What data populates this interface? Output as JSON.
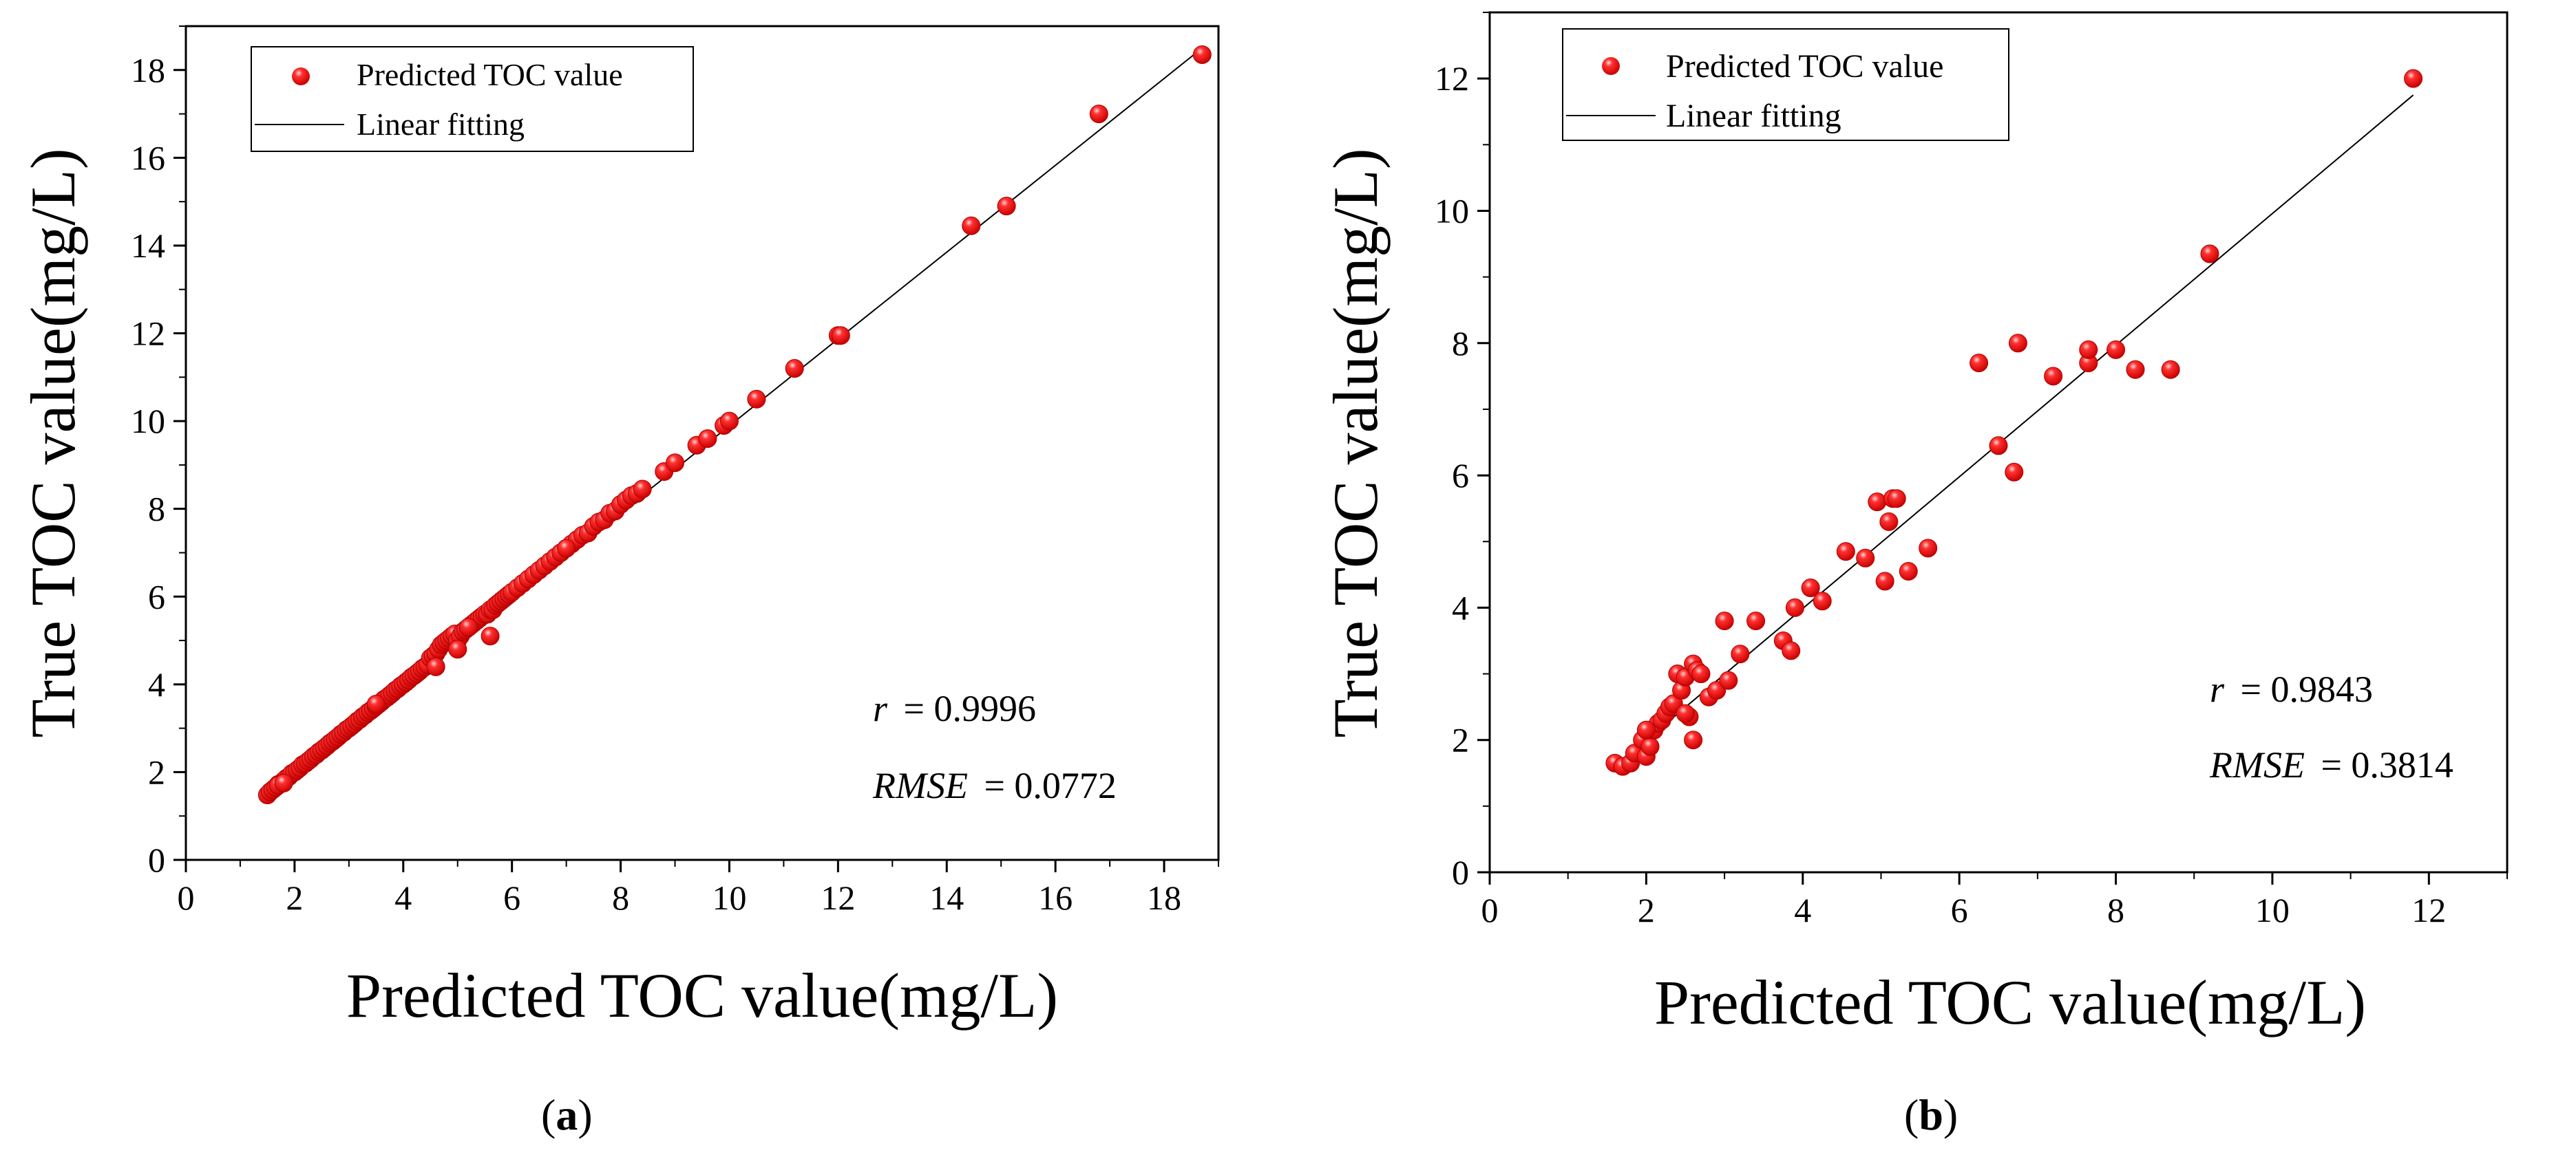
{
  "chart_data": [
    {
      "type": "scatter",
      "panel_label": "a",
      "xlabel": "Predicted TOC value(mg/L)",
      "ylabel": "True TOC value(mg/L)",
      "xlim": [
        0,
        19
      ],
      "ylim": [
        0,
        19
      ],
      "xticks": [
        0,
        2,
        4,
        6,
        8,
        10,
        12,
        14,
        16,
        18
      ],
      "yticks": [
        0,
        2,
        4,
        6,
        8,
        10,
        12,
        14,
        16,
        18
      ],
      "legend": {
        "placement": "top-left",
        "items": [
          "Predicted TOC value",
          "Linear fitting"
        ]
      },
      "stats": {
        "r_label": "r",
        "r_value": "= 0.9996",
        "rmse_label": "RMSE",
        "rmse_value": "= 0.0772"
      },
      "fit_line": {
        "x": [
          1.5,
          18.7
        ],
        "y": [
          1.48,
          18.5
        ]
      },
      "series": [
        {
          "name": "Predicted TOC value",
          "color": "#ff0000",
          "x": [
            1.5,
            1.55,
            1.6,
            1.65,
            1.7,
            1.75,
            1.8,
            1.85,
            1.9,
            1.95,
            2.0,
            2.05,
            2.1,
            2.15,
            2.2,
            2.25,
            2.3,
            2.35,
            2.4,
            2.45,
            2.5,
            2.55,
            2.6,
            2.65,
            2.7,
            2.75,
            2.8,
            2.85,
            2.9,
            2.95,
            3.0,
            3.05,
            3.1,
            3.15,
            3.2,
            3.25,
            3.3,
            3.35,
            3.4,
            3.45,
            3.5,
            3.55,
            3.6,
            3.65,
            3.7,
            3.75,
            3.8,
            3.85,
            3.9,
            3.95,
            4.0,
            4.05,
            4.1,
            4.15,
            4.2,
            4.25,
            4.3,
            4.35,
            4.4,
            4.45,
            4.5,
            4.55,
            4.6,
            4.65,
            4.7,
            4.75,
            4.8,
            4.85,
            4.9,
            4.95,
            5.0,
            5.05,
            5.1,
            5.15,
            5.2,
            5.25,
            5.3,
            5.35,
            5.4,
            5.45,
            5.5,
            5.55,
            5.6,
            5.65,
            5.7,
            5.75,
            5.8,
            5.85,
            5.9,
            5.95,
            6.0,
            6.1,
            6.2,
            6.3,
            6.4,
            6.5,
            6.6,
            6.7,
            6.8,
            6.9,
            7.0,
            7.1,
            7.2,
            7.3,
            7.4,
            7.5,
            7.6,
            7.7,
            7.8,
            7.9,
            8.0,
            8.1,
            8.2,
            8.3,
            8.4,
            8.8,
            9.0,
            9.4,
            9.6,
            9.9,
            10.0,
            10.5,
            11.2,
            12.0,
            12.05,
            14.45,
            15.1,
            16.8,
            18.7,
            1.7,
            1.8,
            5.0,
            5.6,
            4.6,
            5.2,
            3.5,
            7.0
          ],
          "y": [
            1.48,
            1.55,
            1.6,
            1.65,
            1.72,
            1.75,
            1.8,
            1.86,
            1.9,
            1.97,
            2.0,
            2.05,
            2.1,
            2.17,
            2.2,
            2.25,
            2.3,
            2.36,
            2.4,
            2.46,
            2.5,
            2.55,
            2.6,
            2.66,
            2.7,
            2.75,
            2.8,
            2.86,
            2.9,
            2.96,
            3.0,
            3.05,
            3.1,
            3.16,
            3.2,
            3.26,
            3.3,
            3.36,
            3.4,
            3.45,
            3.5,
            3.55,
            3.6,
            3.66,
            3.7,
            3.75,
            3.8,
            3.86,
            3.9,
            3.96,
            4.0,
            4.05,
            4.1,
            4.16,
            4.2,
            4.25,
            4.3,
            4.36,
            4.4,
            4.45,
            4.6,
            4.65,
            4.7,
            4.8,
            4.9,
            4.95,
            5.0,
            5.05,
            5.1,
            5.15,
            5.0,
            5.1,
            5.2,
            5.25,
            5.3,
            5.35,
            5.4,
            5.45,
            5.5,
            5.55,
            5.6,
            5.6,
            5.7,
            5.7,
            5.8,
            5.85,
            5.9,
            5.95,
            6.0,
            6.05,
            6.1,
            6.2,
            6.3,
            6.4,
            6.5,
            6.6,
            6.7,
            6.8,
            6.9,
            7.0,
            7.1,
            7.2,
            7.3,
            7.4,
            7.45,
            7.6,
            7.7,
            7.75,
            7.9,
            7.95,
            8.1,
            8.2,
            8.3,
            8.35,
            8.45,
            8.85,
            9.05,
            9.45,
            9.6,
            9.9,
            10.0,
            10.5,
            11.2,
            11.95,
            11.95,
            14.45,
            14.9,
            17.0,
            18.35,
            1.7,
            1.75,
            4.8,
            5.1,
            4.4,
            5.3,
            3.55,
            7.1
          ]
        }
      ]
    },
    {
      "type": "scatter",
      "panel_label": "b",
      "xlabel": "Predicted TOC value(mg/L)",
      "ylabel": "True TOC value(mg/L)",
      "xlim": [
        0,
        13
      ],
      "ylim": [
        0,
        13
      ],
      "xticks": [
        0,
        2,
        4,
        6,
        8,
        10,
        12
      ],
      "yticks": [
        0,
        2,
        4,
        6,
        8,
        10,
        12
      ],
      "legend": {
        "placement": "top-left",
        "items": [
          "Predicted TOC value",
          "Linear fitting"
        ]
      },
      "stats": {
        "r_label": "r",
        "r_value": "= 0.9843",
        "rmse_label": "RMSE",
        "rmse_value": "= 0.3814"
      },
      "fit_line": {
        "x": [
          1.6,
          11.8
        ],
        "y": [
          1.6,
          11.75
        ]
      },
      "series": [
        {
          "name": "Predicted TOC value",
          "color": "#ff0000",
          "x": [
            1.6,
            1.7,
            1.8,
            1.85,
            1.95,
            2.0,
            2.05,
            2.1,
            2.15,
            2.2,
            2.25,
            2.3,
            2.35,
            2.4,
            2.45,
            2.5,
            2.55,
            2.6,
            2.6,
            2.65,
            2.7,
            2.8,
            2.9,
            3.0,
            3.05,
            3.2,
            3.4,
            3.75,
            3.85,
            3.9,
            4.1,
            4.25,
            4.55,
            4.8,
            4.95,
            5.05,
            5.1,
            5.15,
            5.2,
            5.35,
            5.6,
            6.25,
            6.5,
            6.7,
            6.75,
            7.2,
            7.65,
            7.65,
            8.0,
            8.25,
            8.7,
            9.2,
            11.8,
            2.5,
            2.0
          ],
          "y": [
            1.65,
            1.6,
            1.65,
            1.8,
            2.0,
            1.75,
            1.9,
            2.15,
            2.25,
            2.3,
            2.4,
            2.5,
            2.55,
            3.0,
            2.75,
            2.95,
            2.35,
            2.0,
            3.15,
            3.05,
            3.0,
            2.65,
            2.75,
            3.8,
            2.9,
            3.3,
            3.8,
            3.5,
            3.35,
            4.0,
            4.3,
            4.1,
            4.85,
            4.75,
            5.6,
            4.4,
            5.3,
            5.65,
            5.65,
            4.55,
            4.9,
            7.7,
            6.45,
            6.05,
            8.0,
            7.5,
            7.7,
            7.9,
            7.9,
            7.6,
            7.6,
            9.35,
            12.0,
            2.4,
            2.15
          ]
        }
      ]
    }
  ]
}
